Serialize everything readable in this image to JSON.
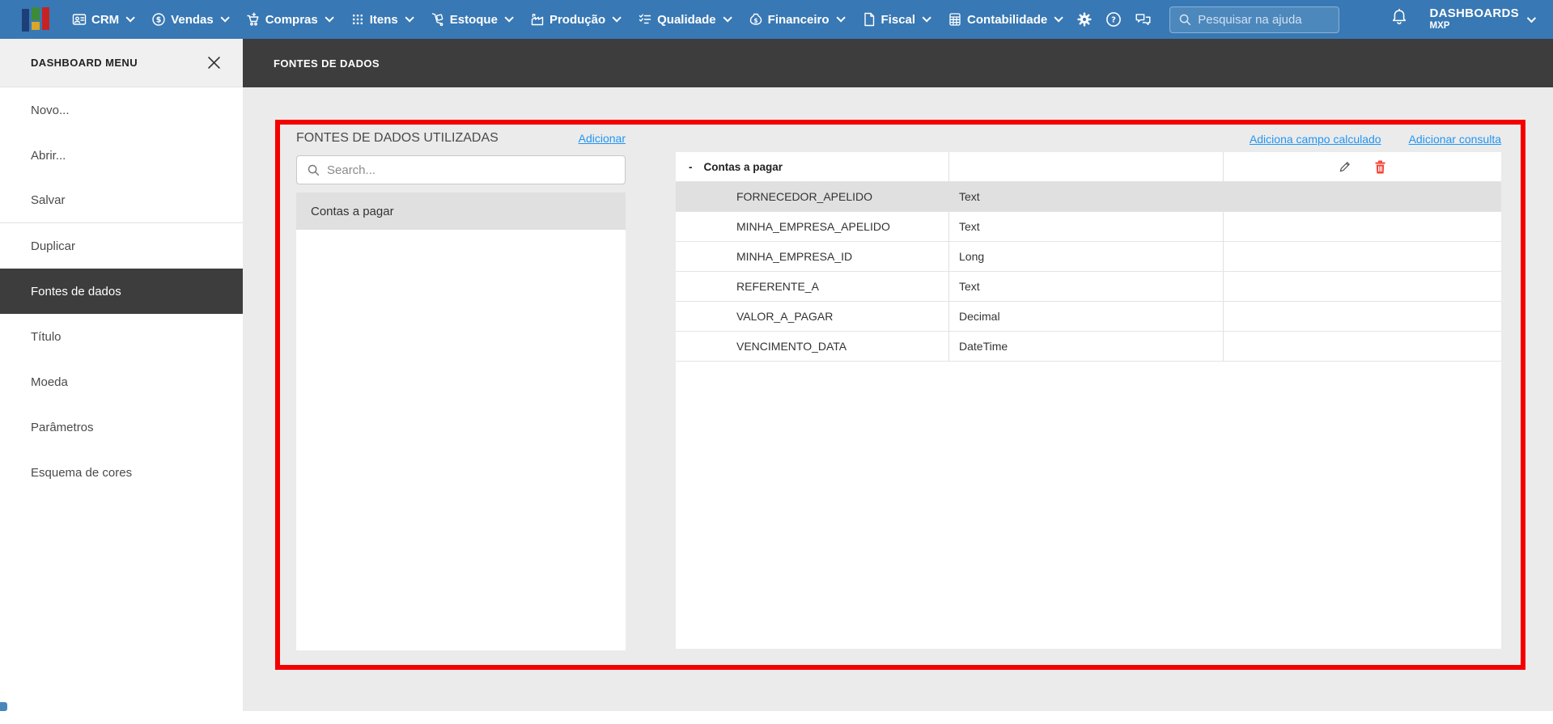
{
  "topbar": {
    "menus": [
      {
        "label": "CRM",
        "icon": "crm-icon"
      },
      {
        "label": "Vendas",
        "icon": "sales-icon"
      },
      {
        "label": "Compras",
        "icon": "purchases-icon"
      },
      {
        "label": "Itens",
        "icon": "items-icon"
      },
      {
        "label": "Estoque",
        "icon": "stock-icon"
      },
      {
        "label": "Produção",
        "icon": "production-icon"
      },
      {
        "label": "Qualidade",
        "icon": "quality-icon"
      },
      {
        "label": "Financeiro",
        "icon": "finance-icon"
      },
      {
        "label": "Fiscal",
        "icon": "fiscal-icon"
      },
      {
        "label": "Contabilidade",
        "icon": "accounting-icon"
      }
    ],
    "search_placeholder": "Pesquisar na ajuda",
    "user_menu": {
      "title": "DASHBOARDS",
      "subtitle": "MXP"
    }
  },
  "sidebar": {
    "title": "DASHBOARD MENU",
    "items": [
      {
        "label": "Novo..."
      },
      {
        "label": "Abrir..."
      },
      {
        "label": "Salvar",
        "divider_after": true
      },
      {
        "label": "Duplicar"
      },
      {
        "label": "Fontes de dados",
        "selected": true
      },
      {
        "label": "Título"
      },
      {
        "label": "Moeda"
      },
      {
        "label": "Parâmetros"
      },
      {
        "label": "Esquema de cores"
      }
    ]
  },
  "page": {
    "title": "FONTES DE DADOS"
  },
  "panel": {
    "sources": {
      "title": "FONTES DE DADOS UTILIZADAS",
      "add_link": "Adicionar",
      "search_placeholder": "Search...",
      "items": [
        {
          "label": "Contas a pagar",
          "selected": true
        }
      ]
    },
    "actions": {
      "add_calculated_field": "Adiciona campo calculado",
      "add_query": "Adicionar consulta"
    },
    "table": {
      "group": {
        "collapse": "-",
        "name": "Contas a pagar"
      },
      "fields": [
        {
          "name": "FORNECEDOR_APELIDO",
          "type": "Text",
          "selected": true
        },
        {
          "name": "MINHA_EMPRESA_APELIDO",
          "type": "Text"
        },
        {
          "name": "MINHA_EMPRESA_ID",
          "type": "Long"
        },
        {
          "name": "REFERENTE_A",
          "type": "Text"
        },
        {
          "name": "VALOR_A_PAGAR",
          "type": "Decimal"
        },
        {
          "name": "VENCIMENTO_DATA",
          "type": "DateTime"
        }
      ]
    }
  },
  "colors": {
    "topbar_blue": "#3878b4",
    "dark_bar": "#3d3d3d",
    "red_border": "#f40000",
    "link_blue": "#2196f3",
    "delete_red": "#f44336",
    "selected_row": "#e0e0e0",
    "main_bg": "#ebebeb"
  }
}
